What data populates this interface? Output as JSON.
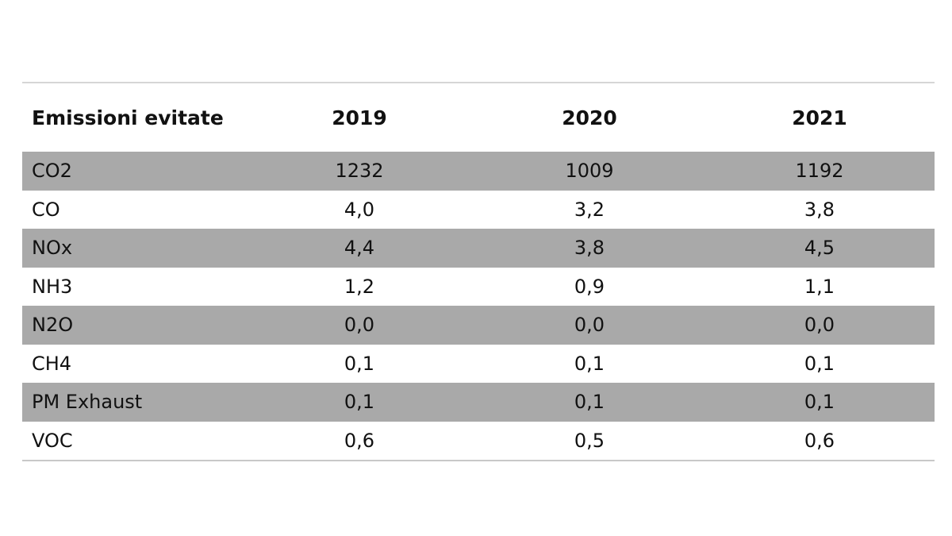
{
  "table": {
    "headers": [
      "Emissioni evitate",
      "2019",
      "2020",
      "2021"
    ],
    "rows": [
      {
        "label": "CO2",
        "values": [
          "1232",
          "1009",
          "1192"
        ],
        "shaded": true
      },
      {
        "label": "CO",
        "values": [
          "4,0",
          "3,2",
          "3,8"
        ],
        "shaded": false
      },
      {
        "label": "NOx",
        "values": [
          "4,4",
          "3,8",
          "4,5"
        ],
        "shaded": true
      },
      {
        "label": "NH3",
        "values": [
          "1,2",
          "0,9",
          "1,1"
        ],
        "shaded": false
      },
      {
        "label": "N2O",
        "values": [
          "0,0",
          "0,0",
          "0,0"
        ],
        "shaded": true
      },
      {
        "label": "CH4",
        "values": [
          "0,1",
          "0,1",
          "0,1"
        ],
        "shaded": false
      },
      {
        "label": "PM Exhaust",
        "values": [
          "0,1",
          "0,1",
          "0,1"
        ],
        "shaded": true
      },
      {
        "label": "VOC",
        "values": [
          "0,6",
          "0,5",
          "0,6"
        ],
        "shaded": false
      }
    ],
    "colors": {
      "shaded_row": "#a9a9a9",
      "rule": "#d6d6d6"
    }
  }
}
